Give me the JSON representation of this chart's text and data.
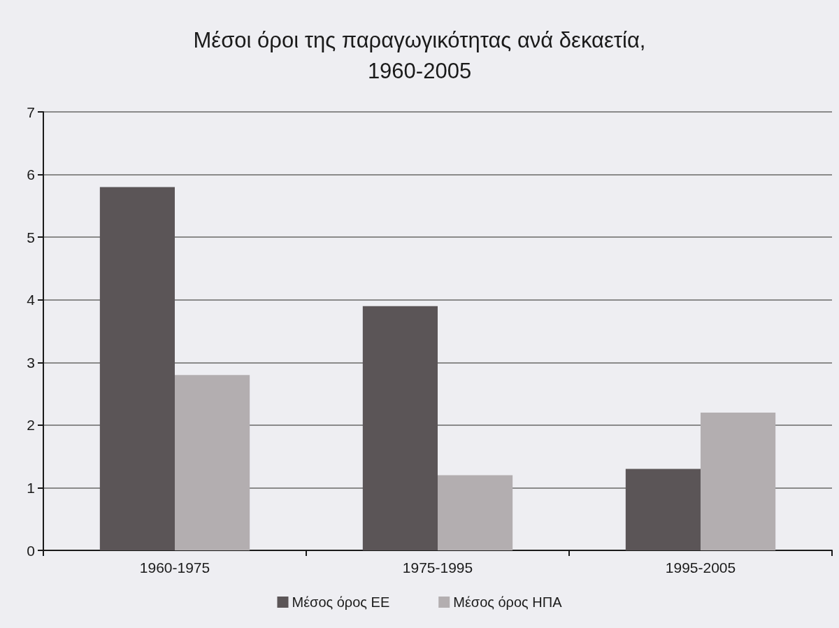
{
  "chart_data": {
    "type": "bar",
    "title": "Μέσοι όροι της παραγωγικότητας ανά δεκαετία, 1960-2005",
    "categories": [
      "1960-1975",
      "1975-1995",
      "1995-2005"
    ],
    "series": [
      {
        "name": "Μέσος όρος ΕΕ",
        "color": "#5b5557",
        "values": [
          5.8,
          3.9,
          1.3
        ]
      },
      {
        "name": "Μέσος όρος ΗΠΑ",
        "color": "#b3aeb0",
        "values": [
          2.8,
          1.2,
          2.2
        ]
      }
    ],
    "ylim": [
      0,
      7
    ],
    "yticks": [
      0,
      1,
      2,
      3,
      4,
      5,
      6,
      7
    ],
    "grid": "y",
    "legend": "bottom"
  }
}
